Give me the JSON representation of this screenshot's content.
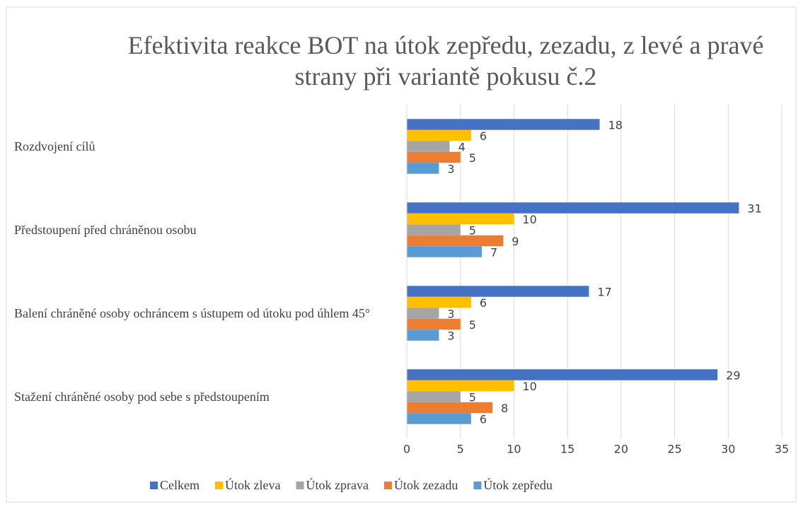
{
  "chart_data": {
    "type": "hbar",
    "title": "Efektivita reakce BOT na útok zepředu, zezadu, z levé a pravé strany při variantě pokusu č.2",
    "categories": [
      "Rozdvojení cílů",
      "Předstoupení před chráněnou osobu",
      "Balení chráněné osoby ochráncem s ústupem od útoku pod úhlem 45°",
      "Stažení chráněné osoby pod sebe s předstoupením"
    ],
    "series": [
      {
        "name": "Celkem",
        "color": "#4472c4",
        "values": [
          18,
          31,
          17,
          29
        ]
      },
      {
        "name": "Útok zleva",
        "color": "#ffc000",
        "values": [
          6,
          10,
          6,
          10
        ]
      },
      {
        "name": "Útok zprava",
        "color": "#a5a5a5",
        "values": [
          4,
          5,
          3,
          5
        ]
      },
      {
        "name": "Útok zezadu",
        "color": "#ed7d31",
        "values": [
          5,
          9,
          5,
          8
        ]
      },
      {
        "name": "Útok zepředu",
        "color": "#5b9bd5",
        "values": [
          3,
          7,
          3,
          6
        ]
      }
    ],
    "xlim": [
      0,
      35
    ],
    "xticks": [
      0,
      5,
      10,
      15,
      20,
      25,
      30,
      35
    ],
    "grid": true,
    "legend": "bottom"
  }
}
